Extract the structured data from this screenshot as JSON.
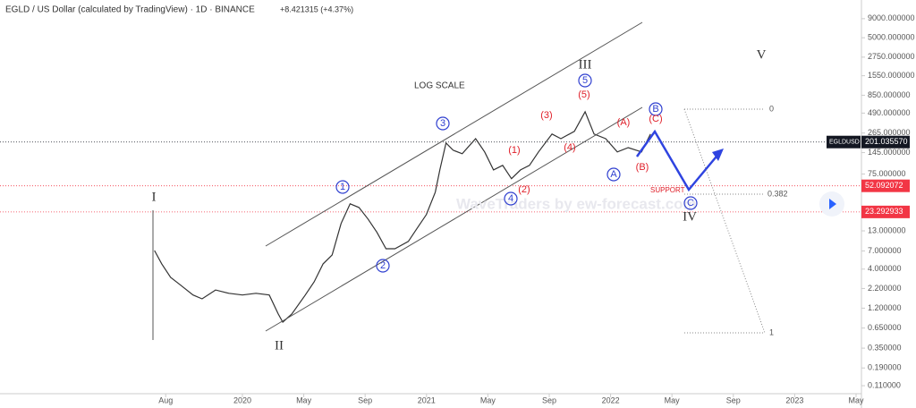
{
  "header": {
    "title": "EGLD / US Dollar (calculated by TradingView) · 1D · BINANCE",
    "change": "+8.421315 (+4.37%)"
  },
  "chart_data": {
    "type": "line",
    "log_scale": true,
    "xlim": [
      -3.8,
      52.35
    ],
    "xticks": [
      {
        "value": 7,
        "label": "Aug"
      },
      {
        "value": 12,
        "label": "2020"
      },
      {
        "value": 16,
        "label": "May"
      },
      {
        "value": 20,
        "label": "Sep"
      },
      {
        "value": 24,
        "label": "2021"
      },
      {
        "value": 28,
        "label": "May"
      },
      {
        "value": 32,
        "label": "Sep"
      },
      {
        "value": 36,
        "label": "2022"
      },
      {
        "value": 40,
        "label": "May"
      },
      {
        "value": 44,
        "label": "Sep"
      },
      {
        "value": 48,
        "label": "2023"
      },
      {
        "value": 52,
        "label": "May"
      }
    ],
    "ylim": [
      0.086,
      16000
    ],
    "yticks": [
      {
        "value": 9000,
        "label": "9000.000000"
      },
      {
        "value": 5000,
        "label": "5000.000000"
      },
      {
        "value": 2750,
        "label": "2750.000000"
      },
      {
        "value": 1550,
        "label": "1550.000000"
      },
      {
        "value": 850,
        "label": "850.000000"
      },
      {
        "value": 490,
        "label": "490.000000"
      },
      {
        "value": 265,
        "label": "265.000000"
      },
      {
        "value": 145,
        "label": "145.000000"
      },
      {
        "value": 75,
        "label": "75.000000"
      },
      {
        "value": 13,
        "label": "13.000000"
      },
      {
        "value": 7,
        "label": "7.000000"
      },
      {
        "value": 4,
        "label": "4.000000"
      },
      {
        "value": 2.2,
        "label": "2.200000"
      },
      {
        "value": 1.2,
        "label": "1.200000"
      },
      {
        "value": 0.65,
        "label": "0.650000"
      },
      {
        "value": 0.35,
        "label": "0.350000"
      },
      {
        "value": 0.19,
        "label": "0.190000"
      },
      {
        "value": 0.11,
        "label": "0.110000"
      }
    ],
    "x": [
      6.27,
      6.74,
      7.32,
      7.91,
      8.78,
      9.37,
      10.25,
      11.12,
      12,
      12.88,
      13.75,
      14.34,
      14.63,
      15.22,
      16.1,
      16.68,
      17.26,
      17.85,
      18.43,
      19.02,
      19.6,
      20.19,
      20.77,
      21.36,
      21.94,
      22.82,
      23.4,
      23.99,
      24.57,
      24.87,
      25.27,
      25.74,
      26.33,
      27.2,
      27.79,
      28.37,
      28.96,
      29.54,
      30.13,
      30.71,
      31.3,
      32.18,
      32.76,
      33.64,
      34.34,
      34.92,
      35.68,
      36.44,
      37.15,
      38.02,
      38.6
    ],
    "series": [
      {
        "name": "EGLDUSD",
        "color": "#333333",
        "values": [
          7.1,
          4.7,
          3.1,
          2.5,
          1.8,
          1.6,
          2.1,
          1.9,
          1.8,
          1.9,
          1.8,
          1.0,
          0.78,
          1.0,
          1.8,
          2.7,
          4.7,
          6.2,
          16.3,
          29.9,
          26.7,
          18.7,
          12.4,
          7.5,
          7.5,
          9.4,
          14.2,
          21.4,
          42.8,
          85,
          195,
          156,
          140,
          223,
          148,
          85,
          98,
          65,
          85,
          98,
          148,
          257,
          223,
          279,
          511,
          257,
          223,
          148,
          169,
          148,
          257
        ]
      }
    ],
    "price_lines": [
      {
        "value": 201.03557,
        "label": "201.035570",
        "color": "#131722"
      },
      {
        "value": 52.092072,
        "label": "52.092072",
        "color": "#f23645"
      },
      {
        "value": 23.292933,
        "label": "23.292933",
        "color": "#f23645"
      }
    ]
  },
  "annotations": [
    "LOG SCALE",
    "WaveTraders by ew-forecast.com",
    "SUPPORT",
    "I",
    "II",
    "III",
    "IV",
    "V",
    "1",
    "2",
    "3",
    "4",
    "5",
    "(1)",
    "(2)",
    "(3)",
    "(4)",
    "(5)",
    "A",
    "B",
    "C",
    "(A)",
    "(B)",
    "(C)",
    "0",
    "0.382",
    "1"
  ]
}
